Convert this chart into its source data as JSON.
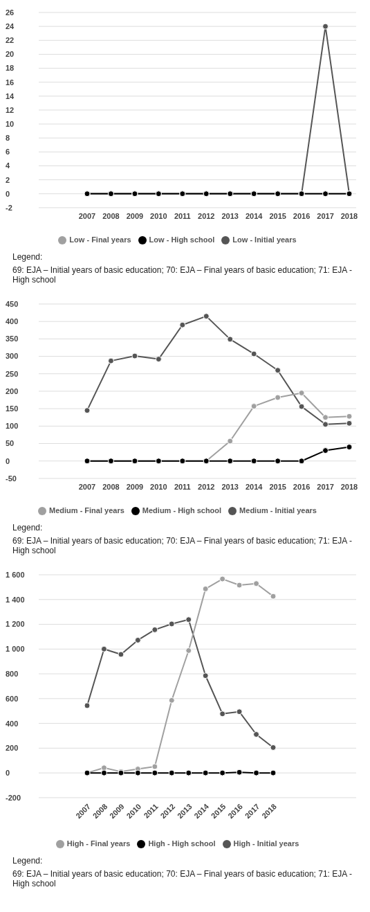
{
  "chart_data": [
    {
      "type": "line",
      "categories": [
        "2007",
        "2008",
        "2009",
        "2010",
        "2011",
        "2012",
        "2013",
        "2014",
        "2015",
        "2016",
        "2017",
        "2018"
      ],
      "series": [
        {
          "name": "Low - Initial years",
          "color": "#555555",
          "values": [
            0,
            0,
            0,
            0,
            0,
            0,
            0,
            0,
            0,
            0,
            24,
            0
          ]
        },
        {
          "name": "Low - Final years",
          "color": "#a0a0a0",
          "values": [
            0,
            0,
            0,
            0,
            0,
            0,
            0,
            0,
            0,
            0,
            0,
            0
          ]
        },
        {
          "name": "Low - High school",
          "color": "#000000",
          "values": [
            0,
            0,
            0,
            0,
            0,
            0,
            0,
            0,
            0,
            0,
            0,
            0
          ]
        }
      ],
      "ylim": [
        -2,
        26
      ],
      "yticks": [
        -2,
        0,
        2,
        4,
        6,
        8,
        10,
        12,
        14,
        16,
        18,
        20,
        22,
        24,
        26
      ],
      "grid": "y",
      "legend": "bottom",
      "marker": "circle",
      "line_style": "solid",
      "annotations": [
        "Legend:",
        "69: EJA – Initial years of basic education; 70: EJA – Final years of basic education; 71: EJA - High school"
      ]
    },
    {
      "type": "line",
      "categories": [
        "2007",
        "2008",
        "2009",
        "2010",
        "2011",
        "2012",
        "2013",
        "2014",
        "2015",
        "2016",
        "2017",
        "2018"
      ],
      "series": [
        {
          "name": "Medium - Initial years",
          "color": "#555555",
          "values": [
            145,
            287,
            301,
            292,
            390,
            415,
            349,
            307,
            260,
            156,
            105,
            108
          ]
        },
        {
          "name": "Medium - Final years",
          "color": "#a0a0a0",
          "values": [
            0,
            0,
            0,
            0,
            0,
            0,
            57,
            157,
            182,
            195,
            125,
            128
          ]
        },
        {
          "name": "Medium - High school",
          "color": "#000000",
          "values": [
            0,
            0,
            0,
            0,
            0,
            0,
            0,
            0,
            0,
            0,
            30,
            40
          ]
        }
      ],
      "ylim": [
        -50,
        450
      ],
      "yticks": [
        -50,
        0,
        50,
        100,
        150,
        200,
        250,
        300,
        350,
        400,
        450
      ],
      "grid": "y",
      "legend": "bottom",
      "marker": "circle",
      "line_style": "solid",
      "annotations": [
        "Legend:",
        "69: EJA – Initial years of basic education; 70: EJA – Final years of basic education; 71: EJA - High school"
      ]
    },
    {
      "type": "line",
      "categories": [
        "2007",
        "2008",
        "2009",
        "2010",
        "2011",
        "2012",
        "2013",
        "2014",
        "2015",
        "2016",
        "2017",
        "2018"
      ],
      "series": [
        {
          "name": "High - Initial years",
          "color": "#555555",
          "values": [
            543,
            1000,
            957,
            1072,
            1156,
            1203,
            1238,
            785,
            477,
            494,
            311,
            205
          ]
        },
        {
          "name": "High - Final years",
          "color": "#a0a0a0",
          "values": [
            0,
            41,
            10,
            31,
            51,
            586,
            988,
            1486,
            1566,
            1516,
            1529,
            1426
          ]
        },
        {
          "name": "High - High school",
          "color": "#000000",
          "values": [
            0,
            0,
            0,
            0,
            0,
            0,
            0,
            0,
            0,
            5,
            0,
            0
          ]
        }
      ],
      "ylim": [
        -200,
        1600
      ],
      "yticks": [
        -200,
        0,
        200,
        400,
        600,
        800,
        {
          "value": 1000,
          "label": "1 000"
        },
        {
          "value": 1200,
          "label": "1 200"
        },
        {
          "value": 1400,
          "label": "1 400"
        },
        {
          "value": 1600,
          "label": "1 600"
        }
      ],
      "grid": "y",
      "legend": "bottom",
      "marker": "circle",
      "line_style": "solid",
      "annotations": [
        "Legend:",
        "69: EJA – Initial years of basic education; 70: EJA – Final years of basic education; 71: EJA - High school"
      ]
    }
  ]
}
